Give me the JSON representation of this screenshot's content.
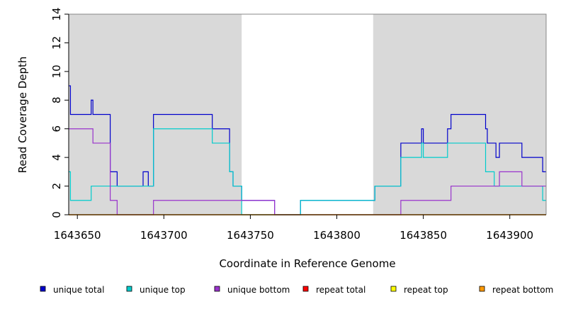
{
  "chart_data": {
    "type": "line",
    "step": true,
    "xlabel": "Coordinate in Reference Genome",
    "ylabel": "Read Coverage Depth",
    "xlim": [
      1643645,
      1643921
    ],
    "ylim": [
      0,
      14
    ],
    "x_ticks": [
      1643650,
      1643700,
      1643750,
      1643800,
      1643850,
      1643900
    ],
    "x_tick_labels": [
      "1643650",
      "1643700",
      "1643750",
      "1643800",
      "1643850",
      "1643900"
    ],
    "y_ticks": [
      0,
      2,
      4,
      6,
      8,
      10,
      12,
      14
    ],
    "y_tick_labels": [
      "0",
      "2",
      "4",
      "6",
      "8",
      "10",
      "12",
      "14"
    ],
    "shaded_regions": [
      {
        "start": 1643645,
        "end": 1643745,
        "color": "#d9d9d9"
      },
      {
        "start": 1643821,
        "end": 1643921,
        "color": "#d9d9d9"
      }
    ],
    "legend_position": "bottom",
    "series": [
      {
        "name": "unique total",
        "color": "#0000cc",
        "points": [
          [
            1643645,
            9
          ],
          [
            1643646,
            7
          ],
          [
            1643658,
            8
          ],
          [
            1643659,
            7
          ],
          [
            1643669,
            3
          ],
          [
            1643673,
            2
          ],
          [
            1643688,
            3
          ],
          [
            1643691,
            2
          ],
          [
            1643694,
            7
          ],
          [
            1643728,
            6
          ],
          [
            1643738,
            3
          ],
          [
            1643740,
            2
          ],
          [
            1643745,
            1
          ],
          [
            1643764,
            0
          ],
          [
            1643779,
            1
          ],
          [
            1643822,
            2
          ],
          [
            1643837,
            5
          ],
          [
            1643849,
            6
          ],
          [
            1643850,
            5
          ],
          [
            1643864,
            6
          ],
          [
            1643866,
            7
          ],
          [
            1643886,
            6
          ],
          [
            1643887,
            5
          ],
          [
            1643892,
            4
          ],
          [
            1643894,
            5
          ],
          [
            1643907,
            4
          ],
          [
            1643919,
            3
          ],
          [
            1643921,
            3
          ]
        ]
      },
      {
        "name": "unique top",
        "color": "#00cccc",
        "points": [
          [
            1643645,
            3
          ],
          [
            1643646,
            1
          ],
          [
            1643658,
            2
          ],
          [
            1643669,
            2
          ],
          [
            1643673,
            2
          ],
          [
            1643688,
            2
          ],
          [
            1643691,
            2
          ],
          [
            1643694,
            6
          ],
          [
            1643728,
            5
          ],
          [
            1643738,
            3
          ],
          [
            1643740,
            2
          ],
          [
            1643745,
            0
          ],
          [
            1643779,
            1
          ],
          [
            1643822,
            2
          ],
          [
            1643837,
            4
          ],
          [
            1643849,
            5
          ],
          [
            1643850,
            4
          ],
          [
            1643864,
            5
          ],
          [
            1643866,
            5
          ],
          [
            1643886,
            3
          ],
          [
            1643891,
            2
          ],
          [
            1643919,
            1
          ],
          [
            1643921,
            1
          ]
        ]
      },
      {
        "name": "unique bottom",
        "color": "#9933cc",
        "points": [
          [
            1643645,
            6
          ],
          [
            1643659,
            5
          ],
          [
            1643669,
            1
          ],
          [
            1643673,
            0
          ],
          [
            1643694,
            1
          ],
          [
            1643764,
            0
          ],
          [
            1643837,
            1
          ],
          [
            1643866,
            2
          ],
          [
            1643894,
            3
          ],
          [
            1643907,
            2
          ],
          [
            1643921,
            2
          ]
        ]
      },
      {
        "name": "repeat total",
        "color": "#ff0000",
        "points": [
          [
            1643645,
            0
          ],
          [
            1643921,
            0
          ]
        ]
      },
      {
        "name": "repeat top",
        "color": "#ffff00",
        "points": [
          [
            1643645,
            0
          ],
          [
            1643921,
            0
          ]
        ]
      },
      {
        "name": "repeat bottom",
        "color": "#ff9900",
        "points": [
          [
            1643645,
            0
          ],
          [
            1643921,
            0
          ]
        ]
      }
    ]
  }
}
